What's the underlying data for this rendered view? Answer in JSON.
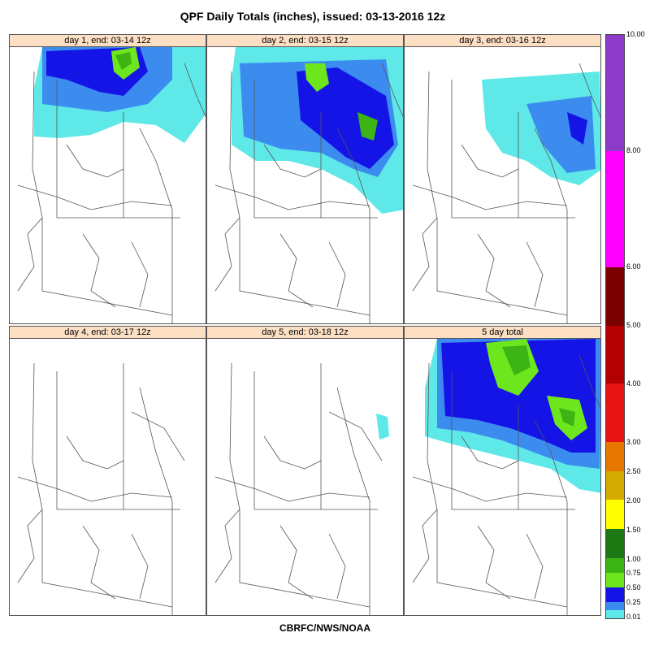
{
  "title": "QPF Daily Totals (inches),  issued: 03-13-2016 12z",
  "footer": "CBRFC/NWS/NOAA",
  "panels": [
    {
      "label": "day 1, end: 03-14 12z"
    },
    {
      "label": "day 2, end: 03-15 12z"
    },
    {
      "label": "day 3, end: 03-16 12z"
    },
    {
      "label": "day 4, end: 03-17 12z"
    },
    {
      "label": "day 5, end: 03-18 12z"
    },
    {
      "label": "5 day total"
    }
  ],
  "legend": {
    "labels": [
      "10.00",
      "8.00",
      "6.00",
      "5.00",
      "4.00",
      "3.00",
      "2.50",
      "2.00",
      "1.50",
      "1.00",
      "0.75",
      "0.50",
      "0.25",
      "0.01"
    ],
    "bins": [
      {
        "from": 0.01,
        "to": 0.25,
        "color": "#5ee8e8"
      },
      {
        "from": 0.25,
        "to": 0.5,
        "color": "#3c8cf0"
      },
      {
        "from": 0.5,
        "to": 0.75,
        "color": "#1414e6"
      },
      {
        "from": 0.75,
        "to": 1.0,
        "color": "#6ee61e"
      },
      {
        "from": 1.0,
        "to": 1.5,
        "color": "#3cb414"
      },
      {
        "from": 1.5,
        "to": 2.0,
        "color": "#1e7814"
      },
      {
        "from": 2.0,
        "to": 2.5,
        "color": "#ffff00"
      },
      {
        "from": 2.5,
        "to": 3.0,
        "color": "#d2aa00"
      },
      {
        "from": 3.0,
        "to": 4.0,
        "color": "#e67800"
      },
      {
        "from": 4.0,
        "to": 5.0,
        "color": "#e61414"
      },
      {
        "from": 5.0,
        "to": 6.0,
        "color": "#b40000"
      },
      {
        "from": 6.0,
        "to": 8.0,
        "color": "#7a0000"
      },
      {
        "from": 8.0,
        "to": 10.0,
        "color": "#ff00ff"
      },
      {
        "from": 10.0,
        "to": null,
        "color": "#8c3cc8"
      }
    ]
  }
}
